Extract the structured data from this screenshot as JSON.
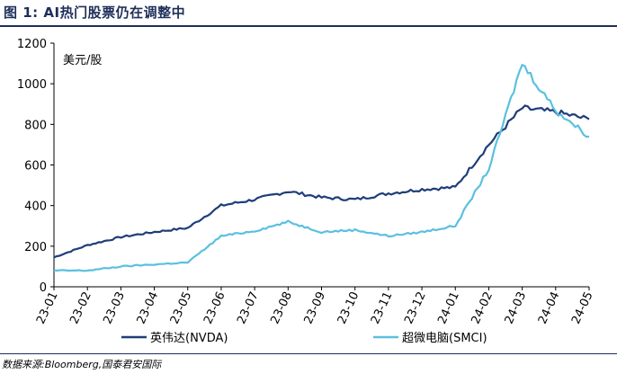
{
  "header": {
    "figure_label": "图 1:",
    "title": "AI热门股票仍在调整中"
  },
  "source": "数据来源:Bloomberg,国泰君安国际",
  "chart_data": {
    "type": "line",
    "title": "AI热门股票仍在调整中",
    "ylabel": "美元/股",
    "ylim": [
      0,
      1200
    ],
    "yticks": [
      0,
      200,
      400,
      600,
      800,
      1000,
      1200
    ],
    "grid": false,
    "legend": "bottom",
    "x_ticks": [
      "23-01",
      "23-02",
      "23-03",
      "23-04",
      "23-05",
      "23-06",
      "23-07",
      "23-08",
      "23-09",
      "23-10",
      "23-11",
      "23-12",
      "24-01",
      "24-02",
      "24-03",
      "24-04",
      "24-05"
    ],
    "x": [
      "23-01",
      "23-02",
      "23-03",
      "23-04",
      "23-05",
      "23-06",
      "23-07",
      "23-08",
      "23-09",
      "23-10",
      "23-11",
      "23-12",
      "24-01",
      "24-02",
      "24-03",
      "24-04",
      "24-05"
    ],
    "series": [
      {
        "name": "英伟达(NVDA)",
        "color": "#1f3d7a",
        "values": [
          145,
          205,
          245,
          270,
          290,
          400,
          430,
          470,
          440,
          430,
          460,
          480,
          490,
          700,
          880,
          860,
          825
        ]
      },
      {
        "name": "超微电脑(SMCI)",
        "color": "#5bc0e0",
        "values": [
          80,
          80,
          100,
          110,
          120,
          250,
          275,
          320,
          270,
          280,
          250,
          270,
          300,
          580,
          1100,
          870,
          740
        ]
      }
    ]
  }
}
